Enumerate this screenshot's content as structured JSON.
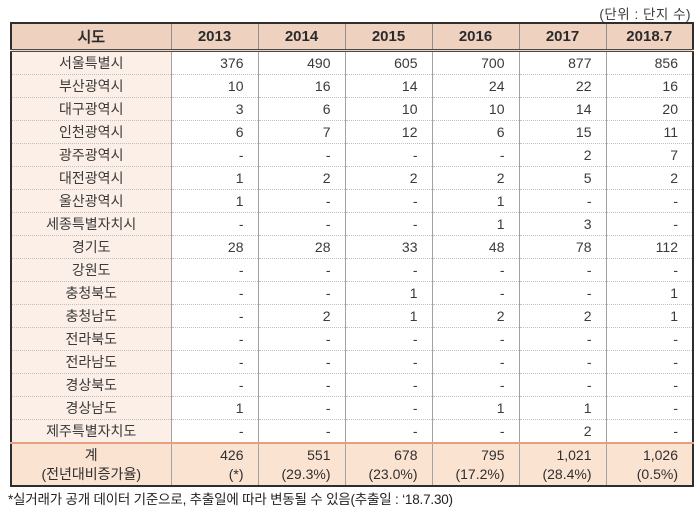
{
  "unit_label": "(단위 : 단지 수)",
  "table": {
    "header": {
      "region": "시도",
      "years": [
        "2013",
        "2014",
        "2015",
        "2016",
        "2017",
        "2018.7"
      ]
    },
    "rows": [
      {
        "region": "서울특별시",
        "values": [
          "376",
          "490",
          "605",
          "700",
          "877",
          "856"
        ]
      },
      {
        "region": "부산광역시",
        "values": [
          "10",
          "16",
          "14",
          "24",
          "22",
          "16"
        ]
      },
      {
        "region": "대구광역시",
        "values": [
          "3",
          "6",
          "10",
          "10",
          "14",
          "20"
        ]
      },
      {
        "region": "인천광역시",
        "values": [
          "6",
          "7",
          "12",
          "6",
          "15",
          "11"
        ]
      },
      {
        "region": "광주광역시",
        "values": [
          "-",
          "-",
          "-",
          "-",
          "2",
          "7"
        ]
      },
      {
        "region": "대전광역시",
        "values": [
          "1",
          "2",
          "2",
          "2",
          "5",
          "2"
        ]
      },
      {
        "region": "울산광역시",
        "values": [
          "1",
          "-",
          "-",
          "1",
          "-",
          "-"
        ]
      },
      {
        "region": "세종특별자치시",
        "values": [
          "-",
          "-",
          "-",
          "1",
          "3",
          "-"
        ]
      },
      {
        "region": "경기도",
        "values": [
          "28",
          "28",
          "33",
          "48",
          "78",
          "112"
        ]
      },
      {
        "region": "강원도",
        "values": [
          "-",
          "-",
          "-",
          "-",
          "-",
          "-"
        ]
      },
      {
        "region": "충청북도",
        "values": [
          "-",
          "-",
          "1",
          "-",
          "-",
          "1"
        ]
      },
      {
        "region": "충청남도",
        "values": [
          "-",
          "2",
          "1",
          "2",
          "2",
          "1"
        ]
      },
      {
        "region": "전라북도",
        "values": [
          "-",
          "-",
          "-",
          "-",
          "-",
          "-"
        ]
      },
      {
        "region": "전라남도",
        "values": [
          "-",
          "-",
          "-",
          "-",
          "-",
          "-"
        ]
      },
      {
        "region": "경상북도",
        "values": [
          "-",
          "-",
          "-",
          "-",
          "-",
          "-"
        ]
      },
      {
        "region": "경상남도",
        "values": [
          "1",
          "-",
          "-",
          "1",
          "1",
          "-"
        ]
      },
      {
        "region": "제주특별자치도",
        "values": [
          "-",
          "-",
          "-",
          "-",
          "2",
          "-"
        ]
      }
    ],
    "total": {
      "label_line1": "계",
      "label_line2": "(전년대비증가율)",
      "values": [
        "426",
        "551",
        "678",
        "795",
        "1,021",
        "1,026"
      ],
      "rates": [
        "(*)",
        "(29.3%)",
        "(23.0%)",
        "(17.2%)",
        "(28.4%)",
        "(0.5%)"
      ]
    }
  },
  "footnote": "*실거래가 공개 데이터 기준으로, 추출일에 따라 변동될 수 있음(추출일 : ‘18.7.30)"
}
